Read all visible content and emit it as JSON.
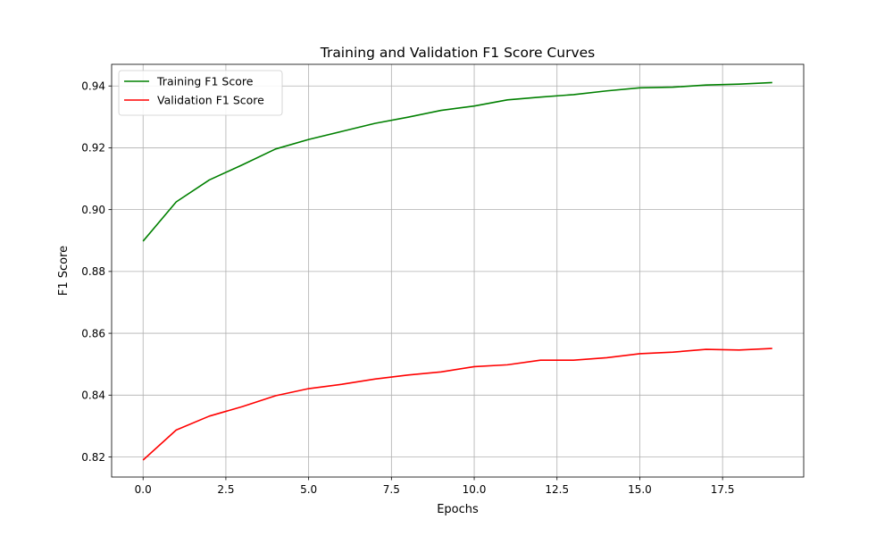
{
  "chart_data": {
    "type": "line",
    "title": "Training and Validation F1 Score Curves",
    "xlabel": "Epochs",
    "ylabel": "F1 Score",
    "xlim": [
      -0.95,
      19.95
    ],
    "ylim": [
      0.8135,
      0.947
    ],
    "x_ticks": [
      0.0,
      2.5,
      5.0,
      7.5,
      10.0,
      12.5,
      15.0,
      17.5
    ],
    "x_tick_labels": [
      "0.0",
      "2.5",
      "5.0",
      "7.5",
      "10.0",
      "12.5",
      "15.0",
      "17.5"
    ],
    "y_ticks": [
      0.82,
      0.84,
      0.86,
      0.88,
      0.9,
      0.92,
      0.94
    ],
    "y_tick_labels": [
      "0.82",
      "0.84",
      "0.86",
      "0.88",
      "0.90",
      "0.92",
      "0.94"
    ],
    "grid": true,
    "legend_position": "top-left",
    "x": [
      0,
      1,
      2,
      3,
      4,
      5,
      6,
      7,
      8,
      9,
      10,
      11,
      12,
      13,
      14,
      15,
      16,
      17,
      18,
      19
    ],
    "series": [
      {
        "name": "Training F1 Score",
        "color": "#008000",
        "values": [
          0.8898,
          0.9025,
          0.9096,
          0.9145,
          0.9196,
          0.9227,
          0.9253,
          0.9279,
          0.9299,
          0.9321,
          0.9335,
          0.9355,
          0.9364,
          0.9372,
          0.9384,
          0.9394,
          0.9396,
          0.9403,
          0.9406,
          0.9411
        ]
      },
      {
        "name": "Validation F1 Score",
        "color": "#ff0000",
        "values": [
          0.819,
          0.8287,
          0.8332,
          0.8363,
          0.8398,
          0.8421,
          0.8435,
          0.8452,
          0.8465,
          0.8475,
          0.8492,
          0.8498,
          0.8513,
          0.8513,
          0.8521,
          0.8534,
          0.8539,
          0.8548,
          0.8546,
          0.8551
        ]
      }
    ]
  }
}
